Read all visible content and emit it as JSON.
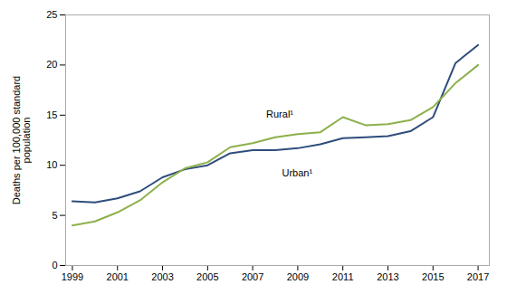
{
  "chart_data": {
    "type": "line",
    "ylabel": "Deaths per 100,000 standard\npopulation",
    "x": [
      1999,
      2000,
      2001,
      2002,
      2003,
      2004,
      2005,
      2006,
      2007,
      2008,
      2009,
      2010,
      2011,
      2012,
      2013,
      2014,
      2015,
      2016,
      2017
    ],
    "series": [
      {
        "name": "Urban¹",
        "color": "#2e4d7b",
        "values": [
          6.4,
          6.3,
          6.7,
          7.4,
          8.8,
          9.6,
          10.0,
          11.2,
          11.5,
          11.5,
          11.7,
          12.1,
          12.7,
          12.8,
          12.9,
          13.4,
          14.8,
          20.2,
          22.0
        ]
      },
      {
        "name": "Rural¹",
        "color": "#8db04b",
        "values": [
          4.0,
          4.4,
          5.3,
          6.5,
          8.3,
          9.7,
          10.3,
          11.8,
          12.2,
          12.8,
          13.1,
          13.3,
          14.8,
          14.0,
          14.1,
          14.5,
          15.8,
          18.2,
          20.0
        ]
      }
    ],
    "annotations": [
      {
        "text": "Rural¹",
        "x": 2007.6,
        "y": 14.8
      },
      {
        "text": "Urban¹",
        "x": 2008.3,
        "y": 9.6
      }
    ],
    "xlim": [
      1998.7,
      2017.5
    ],
    "xticks": [
      1999,
      2001,
      2003,
      2005,
      2007,
      2009,
      2011,
      2013,
      2015,
      2017
    ],
    "ylim": [
      0,
      25
    ],
    "yticks": [
      0,
      5,
      10,
      15,
      20,
      25
    ],
    "grid": false
  }
}
